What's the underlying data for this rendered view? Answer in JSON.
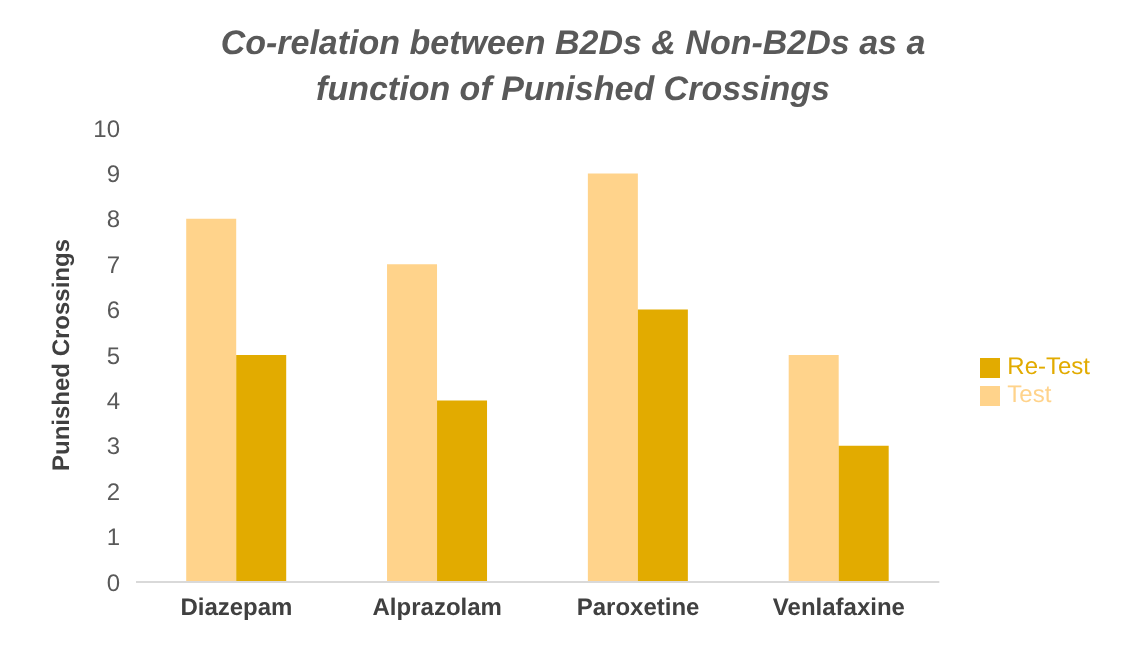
{
  "chart_data": {
    "type": "bar",
    "title": "Co-relation between B2Ds & Non-B2Ds as a function of Punished Crossings",
    "ylabel": "Punished Crossings",
    "categories": [
      "Diazepam",
      "Alprazolam",
      "Paroxetine",
      "Venlafaxine"
    ],
    "series": [
      {
        "name": "Test",
        "color": "#ffd38b",
        "values": [
          8,
          7,
          9,
          5
        ]
      },
      {
        "name": "Re-Test",
        "color": "#e2ab00",
        "values": [
          5,
          4,
          6,
          3
        ]
      }
    ],
    "ylim": [
      0,
      10
    ],
    "yticks": [
      0,
      1,
      2,
      3,
      4,
      5,
      6,
      7,
      8,
      9,
      10
    ],
    "grid": false,
    "legend": "right"
  }
}
